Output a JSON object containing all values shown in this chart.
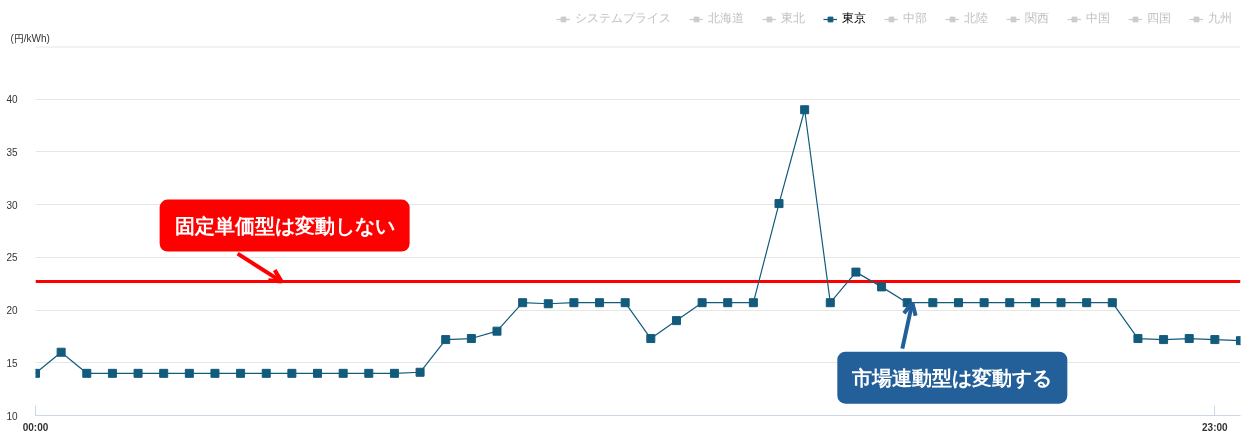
{
  "chart_data": {
    "type": "line",
    "ylabel": "(円/kWh)",
    "x": [
      0,
      0.5,
      1,
      1.5,
      2,
      2.5,
      3,
      3.5,
      4,
      4.5,
      5,
      5.5,
      6,
      6.5,
      7,
      7.5,
      8,
      8.5,
      9,
      9.5,
      10,
      10.5,
      11,
      11.5,
      12,
      12.5,
      13,
      13.5,
      14,
      14.5,
      15,
      15.5,
      16,
      16.5,
      17,
      17.5,
      18,
      18.5,
      19,
      19.5,
      20,
      20.5,
      21,
      21.5,
      22,
      22.5,
      23,
      23.5
    ],
    "xlim": [
      0,
      23.5
    ],
    "xticks": [
      {
        "value": 0,
        "label": "00:00"
      },
      {
        "value": 23,
        "label": "23:00"
      }
    ],
    "ylim": [
      10,
      45
    ],
    "yticks": [
      10,
      15,
      20,
      25,
      30,
      35,
      40,
      {
        "value": 45,
        "label": null
      }
    ],
    "grid": "y",
    "legend": "top right",
    "marker": "square",
    "series": [
      {
        "name": "システムプライス",
        "color": "#cccccc",
        "values": [
          null,
          null,
          null,
          null,
          null,
          null,
          null,
          null,
          null,
          null,
          null,
          null,
          null,
          null,
          null,
          null,
          null,
          null,
          null,
          null,
          null,
          null,
          null,
          null,
          null,
          null,
          null,
          null,
          null,
          null,
          null,
          null,
          null,
          null,
          null,
          null,
          null,
          null,
          null,
          null,
          null,
          null,
          null,
          null,
          null,
          null,
          null,
          null
        ]
      },
      {
        "name": "北海道",
        "color": "#cccccc",
        "values": [
          null,
          null,
          null,
          null,
          null,
          null,
          null,
          null,
          null,
          null,
          null,
          null,
          null,
          null,
          null,
          null,
          null,
          null,
          null,
          null,
          null,
          null,
          null,
          null,
          null,
          null,
          null,
          null,
          null,
          null,
          null,
          null,
          null,
          null,
          null,
          null,
          null,
          null,
          null,
          null,
          null,
          null,
          null,
          null,
          null,
          null,
          null,
          null
        ]
      },
      {
        "name": "東北",
        "color": "#cccccc",
        "values": [
          null,
          null,
          null,
          null,
          null,
          null,
          null,
          null,
          null,
          null,
          null,
          null,
          null,
          null,
          null,
          null,
          null,
          null,
          null,
          null,
          null,
          null,
          null,
          null,
          null,
          null,
          null,
          null,
          null,
          null,
          null,
          null,
          null,
          null,
          null,
          null,
          null,
          null,
          null,
          null,
          null,
          null,
          null,
          null,
          null,
          null,
          null,
          null
        ]
      },
      {
        "name": "東京",
        "color": "#135b7c",
        "values": [
          14.0,
          16.0,
          14.0,
          14.0,
          14.0,
          14.0,
          14.0,
          14.0,
          14.0,
          14.0,
          14.0,
          14.0,
          14.0,
          14.0,
          14.0,
          14.1,
          17.2,
          17.3,
          18.0,
          20.7,
          20.6,
          20.7,
          20.7,
          20.7,
          17.3,
          19.0,
          20.7,
          20.7,
          20.7,
          30.1,
          39.0,
          20.7,
          23.6,
          22.2,
          20.7,
          20.7,
          20.7,
          20.7,
          20.7,
          20.7,
          20.7,
          20.7,
          20.7,
          17.3,
          17.2,
          17.3,
          17.2,
          17.1
        ]
      },
      {
        "name": "中部",
        "color": "#cccccc",
        "values": [
          null,
          null,
          null,
          null,
          null,
          null,
          null,
          null,
          null,
          null,
          null,
          null,
          null,
          null,
          null,
          null,
          null,
          null,
          null,
          null,
          null,
          null,
          null,
          null,
          null,
          null,
          null,
          null,
          null,
          null,
          null,
          null,
          null,
          null,
          null,
          null,
          null,
          null,
          null,
          null,
          null,
          null,
          null,
          null,
          null,
          null,
          null,
          null
        ]
      },
      {
        "name": "北陸",
        "color": "#cccccc",
        "values": [
          null,
          null,
          null,
          null,
          null,
          null,
          null,
          null,
          null,
          null,
          null,
          null,
          null,
          null,
          null,
          null,
          null,
          null,
          null,
          null,
          null,
          null,
          null,
          null,
          null,
          null,
          null,
          null,
          null,
          null,
          null,
          null,
          null,
          null,
          null,
          null,
          null,
          null,
          null,
          null,
          null,
          null,
          null,
          null,
          null,
          null,
          null,
          null
        ]
      },
      {
        "name": "関西",
        "color": "#cccccc",
        "values": [
          null,
          null,
          null,
          null,
          null,
          null,
          null,
          null,
          null,
          null,
          null,
          null,
          null,
          null,
          null,
          null,
          null,
          null,
          null,
          null,
          null,
          null,
          null,
          null,
          null,
          null,
          null,
          null,
          null,
          null,
          null,
          null,
          null,
          null,
          null,
          null,
          null,
          null,
          null,
          null,
          null,
          null,
          null,
          null,
          null,
          null,
          null,
          null
        ]
      },
      {
        "name": "中国",
        "color": "#cccccc",
        "values": [
          null,
          null,
          null,
          null,
          null,
          null,
          null,
          null,
          null,
          null,
          null,
          null,
          null,
          null,
          null,
          null,
          null,
          null,
          null,
          null,
          null,
          null,
          null,
          null,
          null,
          null,
          null,
          null,
          null,
          null,
          null,
          null,
          null,
          null,
          null,
          null,
          null,
          null,
          null,
          null,
          null,
          null,
          null,
          null,
          null,
          null,
          null,
          null
        ]
      },
      {
        "name": "四国",
        "color": "#cccccc",
        "values": [
          null,
          null,
          null,
          null,
          null,
          null,
          null,
          null,
          null,
          null,
          null,
          null,
          null,
          null,
          null,
          null,
          null,
          null,
          null,
          null,
          null,
          null,
          null,
          null,
          null,
          null,
          null,
          null,
          null,
          null,
          null,
          null,
          null,
          null,
          null,
          null,
          null,
          null,
          null,
          null,
          null,
          null,
          null,
          null,
          null,
          null,
          null,
          null
        ]
      },
      {
        "name": "九州",
        "color": "#cccccc",
        "values": [
          null,
          null,
          null,
          null,
          null,
          null,
          null,
          null,
          null,
          null,
          null,
          null,
          null,
          null,
          null,
          null,
          null,
          null,
          null,
          null,
          null,
          null,
          null,
          null,
          null,
          null,
          null,
          null,
          null,
          null,
          null,
          null,
          null,
          null,
          null,
          null,
          null,
          null,
          null,
          null,
          null,
          null,
          null,
          null,
          null,
          null,
          null,
          null
        ]
      }
    ],
    "ref_lines": [
      {
        "axis": "y",
        "value": 22.7,
        "color": "#ff0000"
      }
    ],
    "annotations": [
      {
        "text": "固定単価型は変動しない",
        "x": 4.8,
        "y": 22.7
      },
      {
        "text": "市場連動型は変動する",
        "x": 17.1,
        "y": 20.7
      }
    ]
  }
}
